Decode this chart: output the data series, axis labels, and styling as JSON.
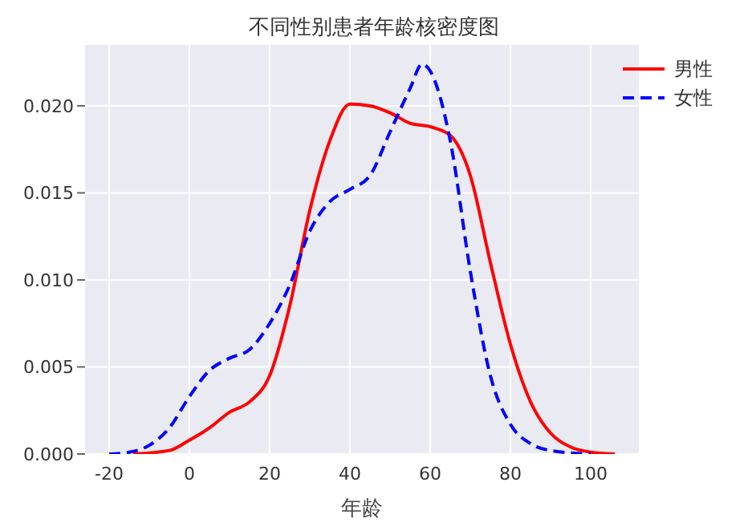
{
  "chart_data": {
    "type": "line",
    "title": "不同性别患者年龄核密度图",
    "xlabel": "年龄",
    "series": [
      {
        "name": "男性",
        "color": "#ff0000",
        "line_style": "solid",
        "x": [
          -14,
          -5,
          0,
          5,
          10,
          15,
          20,
          25,
          30,
          35,
          40,
          45,
          50,
          55,
          60,
          65,
          70,
          75,
          80,
          85,
          90,
          95,
          100,
          106
        ],
        "values": [
          0,
          0.0002,
          0.0008,
          0.0015,
          0.0024,
          0.003,
          0.0045,
          0.0085,
          0.014,
          0.018,
          0.0201,
          0.02,
          0.0196,
          0.019,
          0.0188,
          0.0183,
          0.016,
          0.011,
          0.0063,
          0.003,
          0.0012,
          0.0004,
          0.0001,
          0
        ]
      },
      {
        "name": "女性",
        "color": "#0000ff",
        "line_style": "dashed",
        "x": [
          -20,
          -15,
          -10,
          -5,
          0,
          5,
          10,
          15,
          20,
          25,
          30,
          35,
          40,
          45,
          50,
          55,
          58,
          60,
          65,
          70,
          75,
          80,
          85,
          90,
          100
        ],
        "values": [
          0,
          0.0001,
          0.0005,
          0.0015,
          0.0033,
          0.0048,
          0.0055,
          0.006,
          0.0075,
          0.0097,
          0.0128,
          0.0145,
          0.0152,
          0.016,
          0.0185,
          0.021,
          0.0224,
          0.022,
          0.018,
          0.0105,
          0.0045,
          0.0017,
          0.0006,
          0.0002,
          0
        ]
      }
    ],
    "xlim": [
      -26,
      112
    ],
    "xticks": [
      -20,
      0,
      20,
      40,
      60,
      80,
      100
    ],
    "ylim": [
      0,
      0.0235
    ],
    "yticks": [
      {
        "value": 0,
        "label": "0.000"
      },
      {
        "value": 0.005,
        "label": "0.005"
      },
      {
        "value": 0.01,
        "label": "0.010"
      },
      {
        "value": 0.015,
        "label": "0.015"
      },
      {
        "value": 0.02,
        "label": "0.020"
      }
    ],
    "grid": true,
    "legend": "top right",
    "marker": "none"
  }
}
